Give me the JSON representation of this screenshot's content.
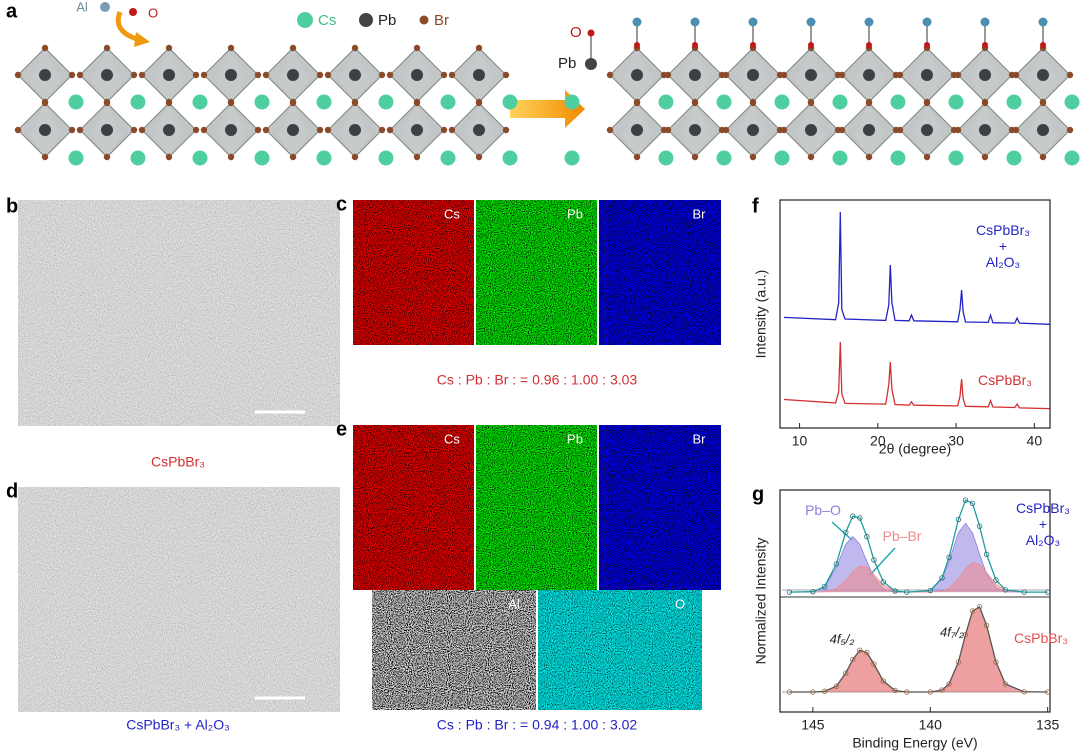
{
  "panel_a": {
    "label": "a",
    "reactants": [
      "Al",
      "O"
    ],
    "legend": [
      "Cs",
      "Pb",
      "Br"
    ],
    "bond_labels": [
      "O",
      "Pb"
    ]
  },
  "panel_b": {
    "label": "b",
    "caption": "CsPbBr₃"
  },
  "panel_c": {
    "label": "c",
    "maps": [
      "Cs",
      "Pb",
      "Br"
    ],
    "caption": "Cs : Pb : Br : = 0.96 : 1.00 : 3.03"
  },
  "panel_d": {
    "label": "d",
    "caption": "CsPbBr₃ + Al₂O₃"
  },
  "panel_e": {
    "label": "e",
    "maps": [
      "Cs",
      "Pb",
      "Br",
      "Al",
      "O"
    ],
    "caption": "Cs : Pb : Br : = 0.94 : 1.00 : 3.02"
  },
  "chart_data": [
    {
      "type": "line",
      "panel_label": "f",
      "xlabel": "2θ (degree)",
      "ylabel": "Intensity (a.u.)",
      "xlim": [
        7.5,
        42
      ],
      "ylim": [
        0,
        10
      ],
      "xticks": [
        10,
        20,
        30,
        40
      ],
      "x": [
        8,
        14.6,
        15.0,
        15.2,
        15.4,
        15.8,
        21.0,
        21.4,
        21.6,
        21.8,
        22.2,
        24.0,
        24.3,
        24.6,
        30.2,
        30.5,
        30.7,
        30.9,
        31.2,
        34.1,
        34.4,
        34.7,
        37.5,
        37.8,
        38.1,
        42
      ],
      "series": [
        {
          "name": "CsPbBr₃ + Al₂O₃",
          "color": "#2323c8",
          "values": [
            4.85,
            4.75,
            5.5,
            9.47,
            5.2,
            4.78,
            4.72,
            5.4,
            7.15,
            5.5,
            4.72,
            4.7,
            4.95,
            4.7,
            4.66,
            5.2,
            6.05,
            5.1,
            4.65,
            4.63,
            4.95,
            4.62,
            4.6,
            4.82,
            4.6,
            4.55
          ]
        },
        {
          "name": "CsPbBr₃",
          "color": "#d32f2f",
          "values": [
            1.25,
            1.1,
            1.6,
            3.77,
            1.5,
            1.08,
            1.05,
            1.9,
            2.89,
            1.7,
            1.03,
            1.0,
            1.15,
            1.0,
            0.97,
            1.4,
            2.15,
            1.3,
            0.95,
            0.93,
            1.2,
            0.92,
            0.9,
            1.05,
            0.88,
            0.85
          ]
        }
      ]
    },
    {
      "type": "line",
      "panel_label": "g",
      "xlabel": "Binding Energy (eV)",
      "ylabel": "Normalized Intensity",
      "xlim": [
        146.4,
        134.9
      ],
      "ylim": [
        0,
        10
      ],
      "xticks": [
        145,
        140,
        135
      ],
      "x": [
        146,
        145,
        144.5,
        144,
        143.6,
        143.3,
        143.0,
        142.7,
        142.4,
        142,
        141.5,
        141,
        140,
        139.5,
        139.2,
        138.8,
        138.5,
        138.2,
        137.9,
        137.6,
        137.2,
        136.8,
        136,
        135
      ],
      "series": [
        {
          "name": "Pb–O",
          "color": "#8a7fe0",
          "area": true,
          "values": [
            5.4,
            5.42,
            5.63,
            6.51,
            7.56,
            7.9,
            7.56,
            6.78,
            6.06,
            5.55,
            5.4,
            5.4,
            5.47,
            5.99,
            6.78,
            8.07,
            8.5,
            8.07,
            7.11,
            6.21,
            5.59,
            5.42,
            5.4,
            5.4
          ]
        },
        {
          "name": "Pb–Br",
          "color": "#f08a8a",
          "area": true,
          "values": [
            5.4,
            5.4,
            5.42,
            5.56,
            5.93,
            6.32,
            6.58,
            6.52,
            6.19,
            5.71,
            5.45,
            5.4,
            5.4,
            5.45,
            5.58,
            6.0,
            6.44,
            6.73,
            6.66,
            6.29,
            5.75,
            5.48,
            5.4,
            5.4
          ]
        },
        {
          "name": "CsPbBr₃ + Al₂O₃",
          "color": "#1f9e9e",
          "label_color": "#2323c8",
          "markers": true,
          "values": [
            5.4,
            5.42,
            5.65,
            6.67,
            8.09,
            8.82,
            8.74,
            7.9,
            6.85,
            5.86,
            5.45,
            5.4,
            5.47,
            6.04,
            6.96,
            8.67,
            9.54,
            9.4,
            8.37,
            7.1,
            5.94,
            5.5,
            5.4,
            5.4
          ]
        },
        {
          "name": "CsPbBr₃",
          "color": "#e05050",
          "area": true,
          "markers": true,
          "values": [
            0.9,
            0.9,
            0.93,
            1.16,
            1.75,
            2.36,
            2.78,
            2.68,
            2.16,
            1.4,
            0.97,
            0.9,
            0.9,
            0.99,
            1.26,
            2.25,
            3.48,
            4.55,
            4.74,
            3.9,
            2.25,
            1.26,
            0.91,
            0.9
          ]
        }
      ],
      "annotations": [
        "4f₅/₂",
        "4f₇/₂"
      ]
    }
  ]
}
